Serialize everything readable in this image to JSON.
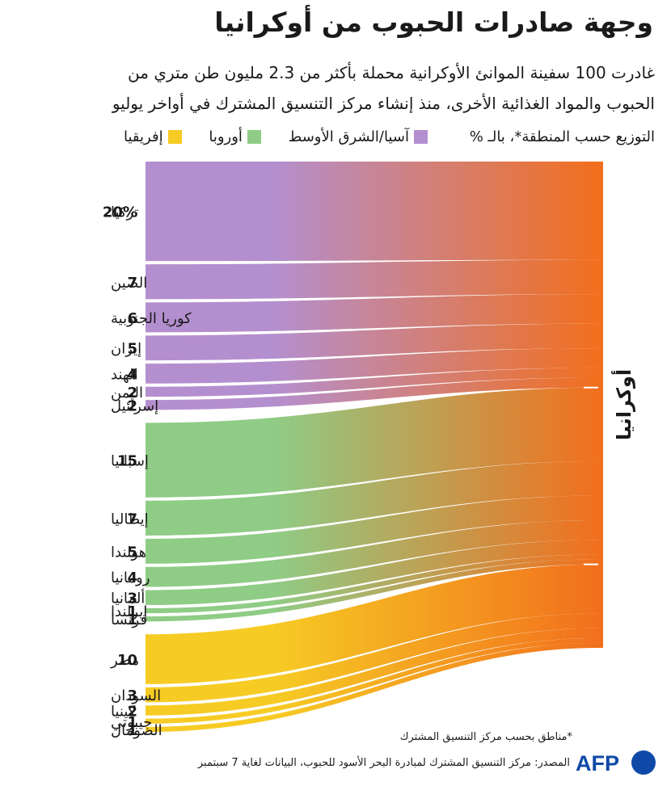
{
  "header": {
    "title": "وجهة صادرات الحبوب من أوكرانيا",
    "subtitle_line1": "غادرت 100 سفينة الموانئ الأوكرانية محملة بأكثر من 2.3 مليون طن متري من",
    "subtitle_line2": "الحبوب والمواد الغذائية الأخرى، منذ إنشاء مركز التنسيق المشترك في أواخر يوليو"
  },
  "legend": {
    "caption": "التوزيع حسب المنطقة*، بالـ %",
    "items": [
      {
        "label": "آسيا/الشرق الأوسط",
        "color": "#b48fcf"
      },
      {
        "label": "أوروبا",
        "color": "#8fcc86"
      },
      {
        "label": "إفريقيا",
        "color": "#f6cb24"
      }
    ]
  },
  "chart_data": {
    "type": "sankey",
    "source_node": "أوكرانيا",
    "source_color": "#f26f1d",
    "unit": "%",
    "regions": [
      {
        "name": "آسيا/الشرق الأوسط",
        "color": "#b48fcf",
        "destinations": [
          {
            "name": "تركيا",
            "value": 20,
            "label": "20%"
          },
          {
            "name": "الصين",
            "value": 7,
            "label": "7"
          },
          {
            "name": "كوريا الجنوبية",
            "value": 6,
            "label": "6"
          },
          {
            "name": "إيران",
            "value": 5,
            "label": "5"
          },
          {
            "name": "الهند",
            "value": 4,
            "label": "4"
          },
          {
            "name": "اليمن",
            "value": 2,
            "label": "2"
          },
          {
            "name": "إسرائيل",
            "value": 2,
            "label": "2"
          }
        ]
      },
      {
        "name": "أوروبا",
        "color": "#8fcc86",
        "destinations": [
          {
            "name": "إسبانيا",
            "value": 15,
            "label": "15"
          },
          {
            "name": "إيطاليا",
            "value": 7,
            "label": "7"
          },
          {
            "name": "هولندا",
            "value": 5,
            "label": "5"
          },
          {
            "name": "رومانيا",
            "value": 4,
            "label": "4"
          },
          {
            "name": "ألمانيا",
            "value": 3,
            "label": "3"
          },
          {
            "name": "إيرلندا",
            "value": 1,
            "label": "1"
          },
          {
            "name": "فرنسا",
            "value": 1,
            "label": "1"
          }
        ]
      },
      {
        "name": "إفريقيا",
        "color": "#f6cb24",
        "destinations": [
          {
            "name": "مصر",
            "value": 10,
            "label": "10"
          },
          {
            "name": "السودان",
            "value": 3,
            "label": "3"
          },
          {
            "name": "كينيا",
            "value": 2,
            "label": "2"
          },
          {
            "name": "جيبوتي",
            "value": 1,
            "label": "1"
          },
          {
            "name": "الصومال",
            "value": 1,
            "label": "1"
          }
        ]
      }
    ]
  },
  "footer": {
    "note": "*مناطق بحسب مركز التنسيق المشترك",
    "source": "المصدر: مركز التنسيق المشترك لمبادرة البحر الأسود للحبوب، البيانات لغاية 7 سبتمبر",
    "logo_text": "AFP",
    "logo_color": "#0f4aa8"
  }
}
